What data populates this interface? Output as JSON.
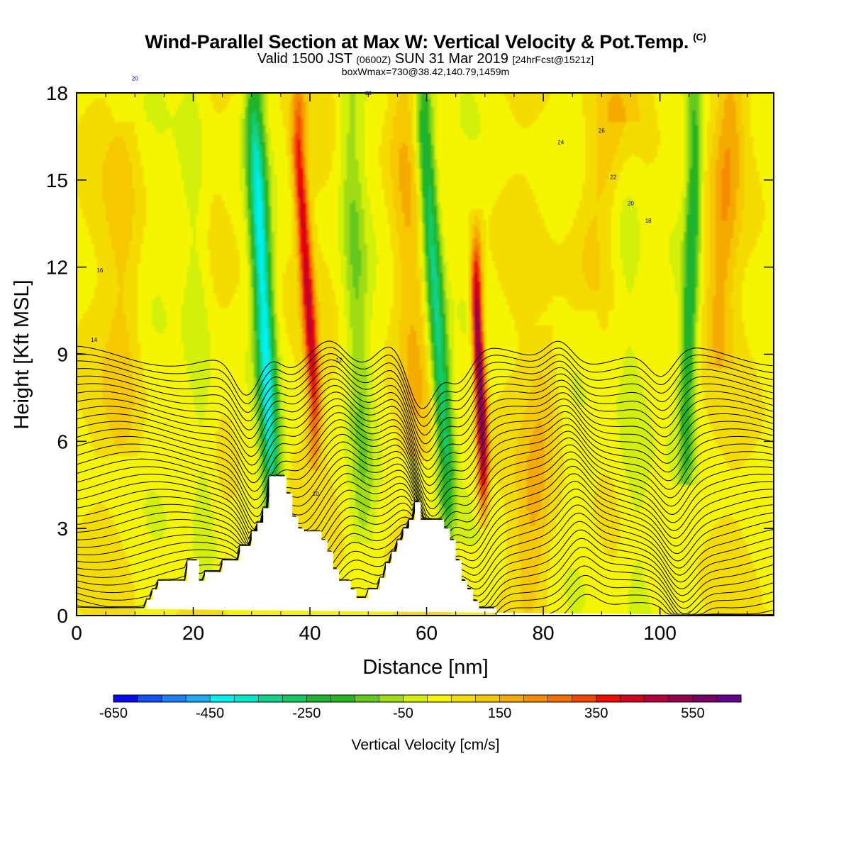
{
  "title": {
    "main": "Wind-Parallel Section at Max W: Vertical Velocity & Pot.Temp.",
    "mark": "(C)",
    "valid_a": "Valid 1500 JST",
    "valid_z": "(0600Z)",
    "valid_b": "SUN 31 Mar 2019",
    "fcst": "[24hrFcst@1521z]",
    "box": "boxWmax=730@38.42,140.79,1459m"
  },
  "chart_data": {
    "type": "heatmap",
    "xlabel": "Distance [nm]",
    "ylabel": "Height [Kft MSL]",
    "xlim": [
      0,
      119.5
    ],
    "ylim": [
      0,
      18
    ],
    "x_ticks": [
      0,
      20,
      40,
      60,
      80,
      100
    ],
    "y_ticks": [
      0,
      3,
      6,
      9,
      12,
      15,
      18
    ],
    "colorbar": {
      "label": "Vertical Velocity [cm/s]",
      "tick_labels": [
        "-650",
        "-450",
        "-250",
        "-50",
        "150",
        "350",
        "550"
      ],
      "tick_values": [
        -650,
        -450,
        -250,
        -50,
        150,
        350,
        550
      ],
      "range": [
        -650,
        650
      ],
      "colors": [
        "#0a0af0",
        "#1450f5",
        "#1e7ff5",
        "#1eaaf5",
        "#00f0f0",
        "#00e6c8",
        "#14d28c",
        "#14c864",
        "#1eb432",
        "#28b41e",
        "#64c81e",
        "#a0dc14",
        "#d2f00a",
        "#f5f500",
        "#f5dc00",
        "#f5c800",
        "#f5aa00",
        "#f58c00",
        "#f56e00",
        "#f54600",
        "#f00a00",
        "#d2001e",
        "#b4003c",
        "#960050",
        "#780064",
        "#64008c"
      ]
    },
    "terrain": {
      "x": [
        0,
        12,
        12,
        13,
        13,
        14,
        14,
        19,
        19,
        21,
        21,
        22,
        22,
        25,
        25,
        28,
        28,
        30,
        30,
        31,
        31,
        32,
        32,
        33,
        33,
        36,
        36,
        37,
        37,
        38,
        38,
        39,
        39,
        42,
        42,
        43,
        43,
        44,
        44,
        45,
        45,
        47,
        47,
        48,
        48,
        50,
        50,
        52,
        52,
        53,
        53,
        54,
        54,
        55,
        55,
        56,
        56,
        57,
        57,
        58,
        58,
        59,
        59,
        63,
        63,
        64,
        64,
        65,
        65,
        66,
        66,
        67,
        67,
        68,
        68,
        69,
        69,
        72,
        72,
        119.5,
        119.5,
        0
      ],
      "y": [
        0.25,
        0.25,
        0.55,
        0.55,
        0.9,
        0.9,
        1.2,
        1.2,
        1.9,
        1.9,
        1.2,
        1.2,
        1.5,
        1.5,
        1.9,
        1.9,
        2.4,
        2.4,
        2.9,
        2.9,
        3.2,
        3.2,
        3.7,
        3.7,
        4.8,
        4.8,
        4.2,
        4.2,
        3.4,
        3.4,
        3.0,
        3.0,
        2.9,
        2.9,
        2.6,
        2.6,
        2.2,
        2.2,
        1.6,
        1.6,
        1.2,
        1.2,
        0.9,
        0.9,
        0.6,
        0.6,
        0.9,
        0.9,
        1.3,
        1.3,
        1.8,
        1.8,
        2.2,
        2.2,
        2.6,
        2.6,
        3.0,
        3.0,
        3.3,
        3.3,
        3.9,
        3.9,
        3.3,
        3.3,
        3.0,
        3.0,
        2.6,
        2.6,
        1.9,
        1.9,
        1.2,
        1.2,
        0.9,
        0.9,
        0.5,
        0.5,
        0.25,
        0.25,
        0,
        0,
        0
      ],
      "color": "#ffffff"
    },
    "w_features": [
      {
        "x0": 33.5,
        "z0": 4.5,
        "x1": 30.5,
        "z1": 17,
        "amp": -450,
        "sx": 1.6,
        "sz": 2.6
      },
      {
        "x0": 40.8,
        "z0": 7.5,
        "x1": 38.0,
        "z1": 16,
        "amp": 380,
        "sx": 1.1,
        "sz": 2.8
      },
      {
        "x0": 63.5,
        "z0": 5.0,
        "x1": 59.5,
        "z1": 17,
        "amp": -360,
        "sx": 1.5,
        "sz": 3.0
      },
      {
        "x0": 69.7,
        "z0": 5.5,
        "x1": 68.5,
        "z1": 11,
        "amp": 560,
        "sx": 0.9,
        "sz": 2.3
      },
      {
        "x0": 104.5,
        "z0": 7.0,
        "x1": 106,
        "z1": 16,
        "amp": -250,
        "sx": 1.3,
        "sz": 4.0
      },
      {
        "x0": 110,
        "z0": 11,
        "x1": 112,
        "z1": 17,
        "amp": 130,
        "sx": 2.5,
        "sz": 4.0
      },
      {
        "x0": 49,
        "z0": 5.0,
        "x1": 47,
        "z1": 16,
        "amp": -120,
        "sx": 2.0,
        "sz": 5.0
      },
      {
        "x0": 78,
        "z0": 2.5,
        "x1": 80,
        "z1": 7,
        "amp": 100,
        "sx": 3.0,
        "sz": 3.0
      },
      {
        "x0": 22,
        "z0": 3.0,
        "x1": 20,
        "z1": 15,
        "amp": -80,
        "sx": 2.5,
        "sz": 6.0
      },
      {
        "x0": 96,
        "z0": 2.0,
        "x1": 94,
        "z1": 14,
        "amp": -80,
        "sx": 3.0,
        "sz": 6.0
      },
      {
        "x0": 8,
        "z0": 8.0,
        "x1": 8,
        "z1": 14,
        "amp": 70,
        "sx": 3.0,
        "sz": 5.0
      },
      {
        "x0": 58,
        "z0": 8.0,
        "x1": 56,
        "z1": 16,
        "amp": 90,
        "sx": 2.5,
        "sz": 5.0
      },
      {
        "x0": 88,
        "z0": 13,
        "x1": 92,
        "z1": 17,
        "amp": 90,
        "sx": 4.0,
        "sz": 3.0
      }
    ],
    "contour_labels": [
      "20",
      "28",
      "26",
      "24",
      "22",
      "20",
      "18",
      "16",
      "14",
      "12",
      "10"
    ],
    "theta_levels": [
      10,
      10.5,
      11,
      11.5,
      12,
      12.5,
      13,
      13.5,
      14,
      14.5,
      15,
      15.5,
      16,
      16.5,
      17,
      17.5,
      18,
      18.5,
      19,
      19.5,
      20,
      20.5,
      21,
      21.5,
      22,
      22.5,
      23,
      23.5,
      24,
      24.5,
      25,
      25.5,
      26,
      26.5,
      27
    ]
  }
}
